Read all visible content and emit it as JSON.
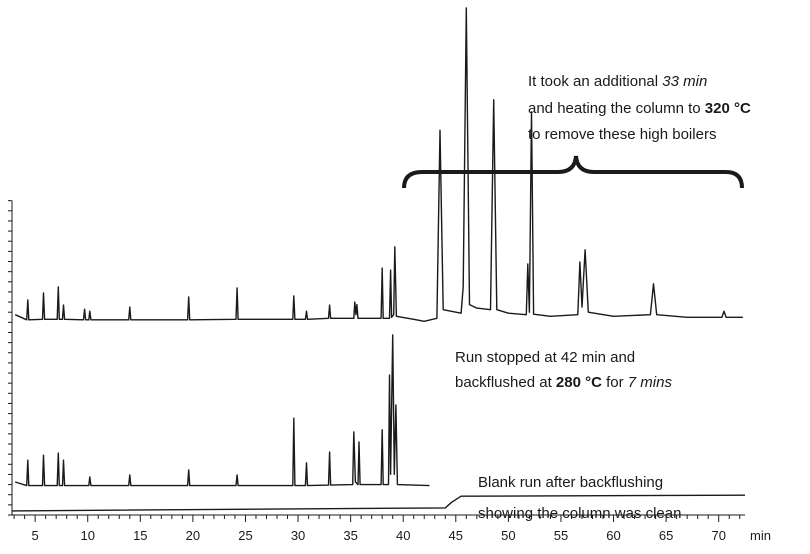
{
  "chart_data": {
    "type": "line",
    "xlabel": "min",
    "xlim": [
      2.8,
      72.5
    ],
    "xticks": [
      5,
      10,
      15,
      20,
      25,
      30,
      35,
      40,
      45,
      50,
      55,
      60,
      65,
      70
    ],
    "xminor_ticks": [
      3,
      4,
      6,
      7,
      8,
      9,
      11,
      12,
      13,
      14,
      16,
      17,
      18,
      19,
      21,
      22,
      23,
      24,
      26,
      27,
      28,
      29,
      31,
      32,
      33,
      34,
      36,
      37,
      38,
      39,
      41,
      42,
      43,
      44,
      46,
      47,
      48,
      49,
      51,
      52,
      53,
      54,
      56,
      57,
      58,
      59,
      61,
      62,
      63,
      64,
      66,
      67,
      68,
      69,
      71,
      72
    ],
    "ylim": [
      0,
      100
    ],
    "yticks": [
      0,
      2,
      4,
      6,
      8,
      10,
      12,
      14,
      16,
      18,
      20,
      22,
      24,
      26,
      28,
      30,
      32,
      34,
      36,
      38,
      40,
      42,
      44,
      46,
      48,
      50,
      52,
      54,
      56,
      58,
      60,
      62
    ],
    "color": "#1a1a1a",
    "series": [
      {
        "x": [
          3.1,
          4.2,
          4.3,
          4.4,
          5.7,
          5.8,
          5.9,
          7.1,
          7.2,
          7.3,
          7.6,
          7.7,
          7.8,
          9.6,
          9.7,
          9.8,
          10.1,
          10.2,
          10.3,
          13.9,
          14.0,
          14.1,
          19.5,
          19.6,
          19.7,
          24.1,
          24.2,
          24.3,
          29.5,
          29.6,
          29.7,
          30.7,
          30.8,
          30.9,
          32.9,
          33.0,
          33.1,
          35.3,
          35.4,
          35.5,
          35.6,
          35.7,
          37.9,
          38.0,
          38.1,
          38.7,
          38.8,
          38.9,
          39.1,
          39.2,
          39.35,
          41,
          42,
          43.2,
          43.5,
          43.8,
          45.5,
          45.7,
          46.0,
          46.3,
          47,
          48.3,
          48.6,
          48.9,
          50,
          51.7,
          51.85,
          52.0,
          52.2,
          52.4,
          54,
          56.6,
          56.8,
          57.0,
          57.3,
          57.6,
          60,
          63.5,
          63.8,
          64.1,
          67,
          70.3,
          70.5,
          70.7,
          72.3
        ],
        "values": [
          39.5,
          38.5,
          42.4,
          38.5,
          38.6,
          43.8,
          38.6,
          38.6,
          45.0,
          38.6,
          38.6,
          41.4,
          38.6,
          38.5,
          40.6,
          38.5,
          38.5,
          40.2,
          38.5,
          38.5,
          41.0,
          38.5,
          38.5,
          43.0,
          38.5,
          38.6,
          44.8,
          38.6,
          38.6,
          43.2,
          38.6,
          38.6,
          40.2,
          38.6,
          38.8,
          41.4,
          38.8,
          38.8,
          42.0,
          39.5,
          41.5,
          38.8,
          38.8,
          48.7,
          38.8,
          38.8,
          48.3,
          39,
          39.5,
          52.9,
          39.2,
          38.6,
          38.2,
          38.8,
          75.9,
          40.5,
          39.8,
          45,
          100,
          41.5,
          40.8,
          40.5,
          81.9,
          40.5,
          39.8,
          39.5,
          49.5,
          40,
          79.5,
          39.6,
          39.2,
          39.5,
          49.9,
          41,
          52.3,
          40,
          39.2,
          39.5,
          45.6,
          39.5,
          39,
          39,
          40.2,
          39,
          39
        ]
      },
      {
        "x": [
          3.1,
          4.2,
          4.3,
          4.4,
          5.7,
          5.8,
          5.9,
          7.1,
          7.2,
          7.3,
          7.6,
          7.7,
          7.8,
          10.1,
          10.2,
          10.3,
          13.9,
          14.0,
          14.1,
          19.5,
          19.6,
          19.7,
          24.1,
          24.2,
          24.3,
          29.5,
          29.6,
          29.7,
          30.7,
          30.8,
          30.9,
          32.9,
          33.0,
          33.1,
          35.2,
          35.3,
          35.45,
          35.7,
          35.8,
          35.9,
          37.9,
          38.0,
          38.1,
          38.6,
          38.7,
          38.8,
          39.0,
          39.15,
          39.3,
          39.45,
          41,
          42.5
        ],
        "values": [
          6.5,
          5.8,
          10.8,
          5.8,
          5.8,
          11.8,
          5.8,
          5.8,
          12.2,
          5.8,
          5.8,
          10.8,
          5.8,
          5.8,
          7.5,
          5.8,
          5.8,
          7.9,
          5.8,
          5.8,
          8.9,
          5.8,
          5.8,
          7.9,
          5.8,
          5.8,
          19.1,
          5.8,
          5.8,
          10.3,
          5.8,
          5.9,
          12.4,
          5.9,
          6,
          16.4,
          6.5,
          6,
          14.4,
          6,
          6,
          16.8,
          6,
          6,
          27.6,
          8,
          35.5,
          8,
          21.7,
          6,
          5.9,
          5.8
        ]
      },
      {
        "x": [
          2.8,
          44,
          44.6,
          45.5,
          72.5
        ],
        "values": [
          0.8,
          1.4,
          2.5,
          3.7,
          3.9
        ]
      }
    ],
    "annotations": [
      [
        [
          "It took an additional ",
          "33 min"
        ],
        [
          "and heating the column to ",
          "320 °C"
        ],
        [
          "to remove these high boilers"
        ]
      ],
      [
        [
          "Run stopped at 42 min and"
        ],
        [
          "backflushed at ",
          "280 °C",
          " for ",
          "7 mins"
        ]
      ],
      [
        [
          "Blank run after backflushing"
        ],
        [
          "showing the column was clean"
        ]
      ]
    ]
  }
}
